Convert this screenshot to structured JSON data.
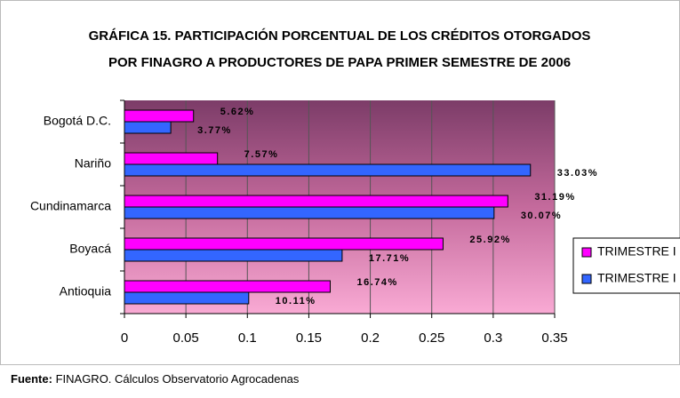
{
  "chart_data": {
    "type": "barh",
    "title": [
      "GRÁFICA 15. PARTICIPACIÓN PORCENTUAL DE LOS CRÉDITOS OTORGADOS",
      "POR FINAGRO A PRODUCTORES DE PAPA PRIMER SEMESTRE DE 2006"
    ],
    "categories": [
      "Bogotá D.C.",
      "Nariño",
      "Cundinamarca",
      "Boyacá",
      "Antioquia"
    ],
    "series": [
      {
        "name": "TRIMESTRE I",
        "color": "#ff00ff",
        "values": [
          0.0562,
          0.0757,
          0.3119,
          0.2592,
          0.1674
        ],
        "value_labels": [
          "5.62%",
          "7.57%",
          "31.19%",
          "25.92%",
          "16.74%"
        ]
      },
      {
        "name": "TRIMESTRE I",
        "color": "#3366ff",
        "values": [
          0.0377,
          0.3303,
          0.3007,
          0.1771,
          0.1011
        ],
        "value_labels": [
          "3.77%",
          "33.03%",
          "30.07%",
          "17.71%",
          "10.11%"
        ]
      }
    ],
    "xlim": [
      0,
      0.35
    ],
    "xticks": [
      0,
      0.05,
      0.1,
      0.15,
      0.2,
      0.25,
      0.3,
      0.35
    ],
    "grid": true,
    "legend": "right",
    "source_label": "Fuente:",
    "source_text": "FINAGRO. Cálculos Observatorio Agrocadenas"
  }
}
